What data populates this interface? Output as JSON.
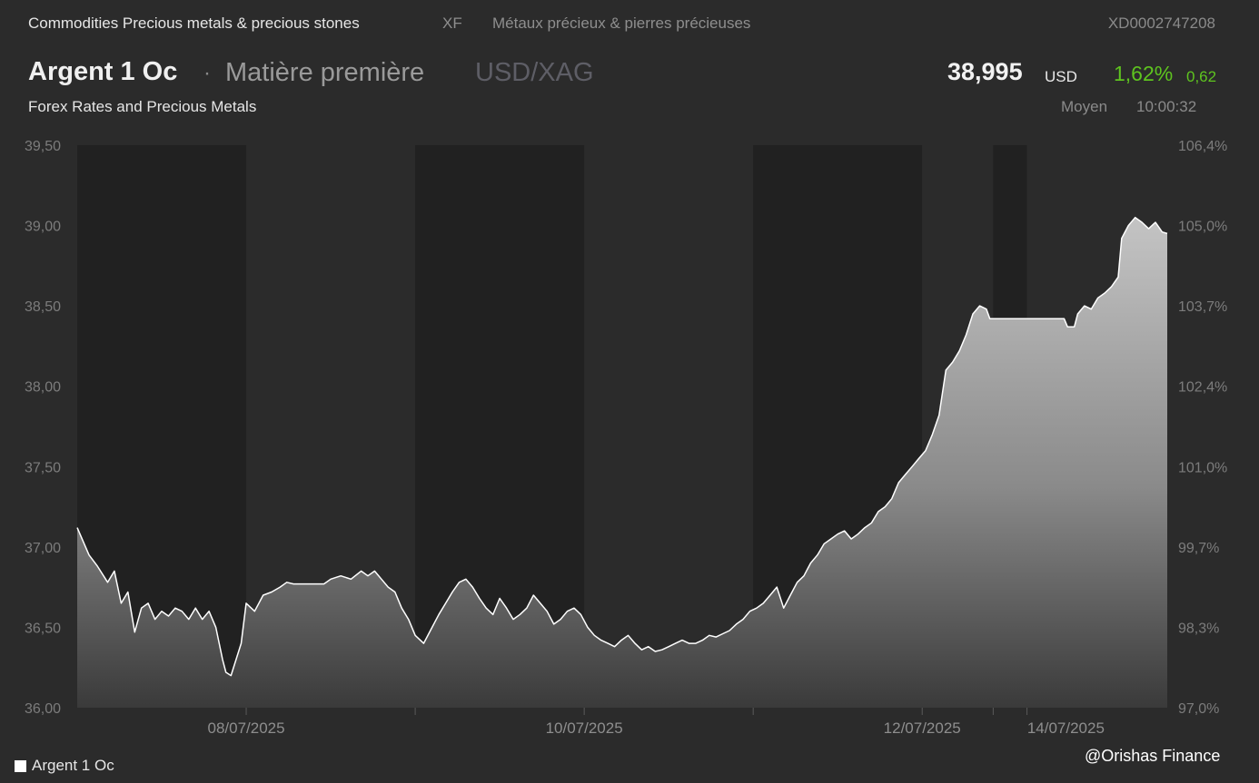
{
  "header": {
    "breadcrumb": "Commodities Precious metals & precious stones",
    "exchange_code": "XF",
    "breadcrumb_fr": "Métaux précieux & pierres précieuses",
    "isin": "XD0002747208",
    "title": "Argent 1 Oc",
    "separator": "·",
    "type": "Matière première",
    "pair": "USD/XAG",
    "subtitle": "Forex Rates and Precious Metals",
    "price": "38,995",
    "currency": "USD",
    "change_pct": "1,62%",
    "change_abs": "0,62",
    "price_basis": "Moyen",
    "time": "10:00:32",
    "up_color": "#5ec41f"
  },
  "legend": {
    "label": "Argent 1 Oc",
    "swatch_color": "#ffffff"
  },
  "watermark": "@Orishas Finance",
  "chart_data": {
    "type": "area",
    "series": [
      {
        "name": "Argent 1 Oc",
        "points": [
          [
            0.0,
            37.12
          ],
          [
            0.07,
            36.95
          ],
          [
            0.12,
            36.88
          ],
          [
            0.18,
            36.78
          ],
          [
            0.22,
            36.85
          ],
          [
            0.26,
            36.65
          ],
          [
            0.3,
            36.72
          ],
          [
            0.34,
            36.47
          ],
          [
            0.38,
            36.62
          ],
          [
            0.42,
            36.65
          ],
          [
            0.46,
            36.55
          ],
          [
            0.5,
            36.6
          ],
          [
            0.54,
            36.57
          ],
          [
            0.58,
            36.62
          ],
          [
            0.62,
            36.6
          ],
          [
            0.66,
            36.55
          ],
          [
            0.7,
            36.62
          ],
          [
            0.74,
            36.55
          ],
          [
            0.78,
            36.6
          ],
          [
            0.82,
            36.5
          ],
          [
            0.86,
            36.3
          ],
          [
            0.88,
            36.22
          ],
          [
            0.91,
            36.2
          ],
          [
            0.94,
            36.3
          ],
          [
            0.97,
            36.4
          ],
          [
            1.0,
            36.65
          ],
          [
            1.05,
            36.6
          ],
          [
            1.1,
            36.7
          ],
          [
            1.15,
            36.72
          ],
          [
            1.2,
            36.75
          ],
          [
            1.24,
            36.78
          ],
          [
            1.28,
            36.77
          ],
          [
            1.35,
            36.77
          ],
          [
            1.42,
            36.77
          ],
          [
            1.46,
            36.77
          ],
          [
            1.5,
            36.8
          ],
          [
            1.56,
            36.82
          ],
          [
            1.62,
            36.8
          ],
          [
            1.68,
            36.85
          ],
          [
            1.72,
            36.82
          ],
          [
            1.76,
            36.85
          ],
          [
            1.8,
            36.8
          ],
          [
            1.84,
            36.75
          ],
          [
            1.88,
            36.72
          ],
          [
            1.92,
            36.62
          ],
          [
            1.96,
            36.55
          ],
          [
            2.0,
            36.45
          ],
          [
            2.05,
            36.4
          ],
          [
            2.1,
            36.5
          ],
          [
            2.14,
            36.58
          ],
          [
            2.18,
            36.65
          ],
          [
            2.22,
            36.72
          ],
          [
            2.26,
            36.78
          ],
          [
            2.3,
            36.8
          ],
          [
            2.34,
            36.75
          ],
          [
            2.38,
            36.68
          ],
          [
            2.42,
            36.62
          ],
          [
            2.46,
            36.58
          ],
          [
            2.5,
            36.68
          ],
          [
            2.54,
            36.62
          ],
          [
            2.58,
            36.55
          ],
          [
            2.62,
            36.58
          ],
          [
            2.66,
            36.62
          ],
          [
            2.7,
            36.7
          ],
          [
            2.74,
            36.65
          ],
          [
            2.78,
            36.6
          ],
          [
            2.82,
            36.52
          ],
          [
            2.86,
            36.55
          ],
          [
            2.9,
            36.6
          ],
          [
            2.94,
            36.62
          ],
          [
            2.98,
            36.58
          ],
          [
            3.02,
            36.5
          ],
          [
            3.06,
            36.45
          ],
          [
            3.1,
            36.42
          ],
          [
            3.14,
            36.4
          ],
          [
            3.18,
            36.38
          ],
          [
            3.22,
            36.42
          ],
          [
            3.26,
            36.45
          ],
          [
            3.3,
            36.4
          ],
          [
            3.34,
            36.36
          ],
          [
            3.38,
            36.38
          ],
          [
            3.42,
            36.35
          ],
          [
            3.46,
            36.36
          ],
          [
            3.5,
            36.38
          ],
          [
            3.54,
            36.4
          ],
          [
            3.58,
            36.42
          ],
          [
            3.62,
            36.4
          ],
          [
            3.66,
            36.4
          ],
          [
            3.7,
            36.42
          ],
          [
            3.74,
            36.45
          ],
          [
            3.78,
            36.44
          ],
          [
            3.82,
            36.46
          ],
          [
            3.86,
            36.48
          ],
          [
            3.9,
            36.52
          ],
          [
            3.94,
            36.55
          ],
          [
            3.98,
            36.6
          ],
          [
            4.02,
            36.62
          ],
          [
            4.06,
            36.65
          ],
          [
            4.1,
            36.7
          ],
          [
            4.14,
            36.75
          ],
          [
            4.18,
            36.62
          ],
          [
            4.22,
            36.7
          ],
          [
            4.26,
            36.78
          ],
          [
            4.3,
            36.82
          ],
          [
            4.34,
            36.9
          ],
          [
            4.38,
            36.95
          ],
          [
            4.42,
            37.02
          ],
          [
            4.46,
            37.05
          ],
          [
            4.5,
            37.08
          ],
          [
            4.54,
            37.1
          ],
          [
            4.58,
            37.05
          ],
          [
            4.62,
            37.08
          ],
          [
            4.66,
            37.12
          ],
          [
            4.7,
            37.15
          ],
          [
            4.74,
            37.22
          ],
          [
            4.78,
            37.25
          ],
          [
            4.82,
            37.3
          ],
          [
            4.86,
            37.4
          ],
          [
            4.9,
            37.45
          ],
          [
            4.94,
            37.5
          ],
          [
            4.98,
            37.55
          ],
          [
            5.02,
            37.6
          ],
          [
            5.06,
            37.7
          ],
          [
            5.1,
            37.82
          ],
          [
            5.14,
            38.1
          ],
          [
            5.18,
            38.15
          ],
          [
            5.22,
            38.22
          ],
          [
            5.26,
            38.32
          ],
          [
            5.3,
            38.45
          ],
          [
            5.34,
            38.5
          ],
          [
            5.38,
            38.48
          ],
          [
            5.4,
            38.42
          ],
          [
            5.5,
            38.42
          ],
          [
            5.6,
            38.42
          ],
          [
            5.7,
            38.42
          ],
          [
            5.8,
            38.42
          ],
          [
            5.84,
            38.42
          ],
          [
            5.86,
            38.37
          ],
          [
            5.9,
            38.37
          ],
          [
            5.92,
            38.45
          ],
          [
            5.96,
            38.5
          ],
          [
            6.0,
            38.48
          ],
          [
            6.04,
            38.55
          ],
          [
            6.08,
            38.58
          ],
          [
            6.12,
            38.62
          ],
          [
            6.16,
            38.68
          ],
          [
            6.18,
            38.92
          ],
          [
            6.22,
            39.0
          ],
          [
            6.26,
            39.05
          ],
          [
            6.3,
            39.02
          ],
          [
            6.34,
            38.98
          ],
          [
            6.38,
            39.02
          ],
          [
            6.42,
            38.96
          ],
          [
            6.45,
            38.95
          ]
        ]
      }
    ],
    "y_left_ticks": [
      "39,50",
      "39,00",
      "38,50",
      "38,00",
      "37,50",
      "37,00",
      "36,50",
      "36,00"
    ],
    "y_right_ticks": [
      "106,4%",
      "105,0%",
      "103,7%",
      "102,4%",
      "101,0%",
      "99,7%",
      "98,3%",
      "97,0%"
    ],
    "ylim": [
      36.0,
      39.5
    ],
    "x_labels": [
      {
        "label": "08/07/2025",
        "x": 1.0
      },
      {
        "label": "10/07/2025",
        "x": 3.0
      },
      {
        "label": "12/07/2025",
        "x": 5.0
      },
      {
        "label": "14/07/2025",
        "x": 5.85
      }
    ],
    "period_bands": [
      {
        "from": 0.0,
        "to": 1.0,
        "shade": "dark"
      },
      {
        "from": 1.0,
        "to": 2.0,
        "shade": "light"
      },
      {
        "from": 2.0,
        "to": 3.0,
        "shade": "dark"
      },
      {
        "from": 3.0,
        "to": 4.0,
        "shade": "light"
      },
      {
        "from": 4.0,
        "to": 5.0,
        "shade": "dark"
      },
      {
        "from": 5.0,
        "to": 5.42,
        "shade": "light"
      },
      {
        "from": 5.42,
        "to": 5.62,
        "shade": "dark"
      },
      {
        "from": 5.62,
        "to": 6.45,
        "shade": "light"
      }
    ],
    "xlim": [
      0.0,
      6.45
    ],
    "grid": false,
    "legend_position": "bottom-left"
  }
}
